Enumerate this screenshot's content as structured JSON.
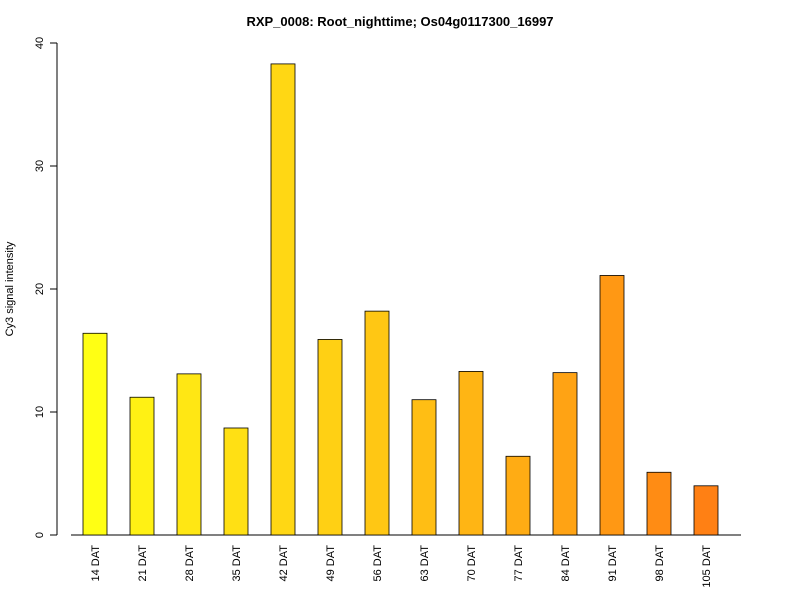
{
  "chart_data": {
    "type": "bar",
    "title": "RXP_0008: Root_nighttime; Os04g0117300_16997",
    "xlabel": "",
    "ylabel": "Cy3 signal intensity",
    "ylim": [
      0,
      40
    ],
    "yticks": [
      0,
      10,
      20,
      30,
      40
    ],
    "grid": false,
    "legend": "none",
    "categories": [
      "14 DAT",
      "21 DAT",
      "28 DAT",
      "35 DAT",
      "42 DAT",
      "49 DAT",
      "56 DAT",
      "63 DAT",
      "70 DAT",
      "77 DAT",
      "84 DAT",
      "91 DAT",
      "98 DAT",
      "105 DAT"
    ],
    "values": [
      16.4,
      11.2,
      13.1,
      8.7,
      38.3,
      15.9,
      18.2,
      11.0,
      13.3,
      6.4,
      13.2,
      21.1,
      5.1,
      4.0
    ],
    "colors": [
      "#FFFF14",
      "#FFF114",
      "#FFE714",
      "#FFE014",
      "#FFD714",
      "#FFD014",
      "#FFC714",
      "#FFBE14",
      "#FFB514",
      "#FFAC14",
      "#FFA314",
      "#FF9814",
      "#FF8C14",
      "#FF8014"
    ]
  }
}
